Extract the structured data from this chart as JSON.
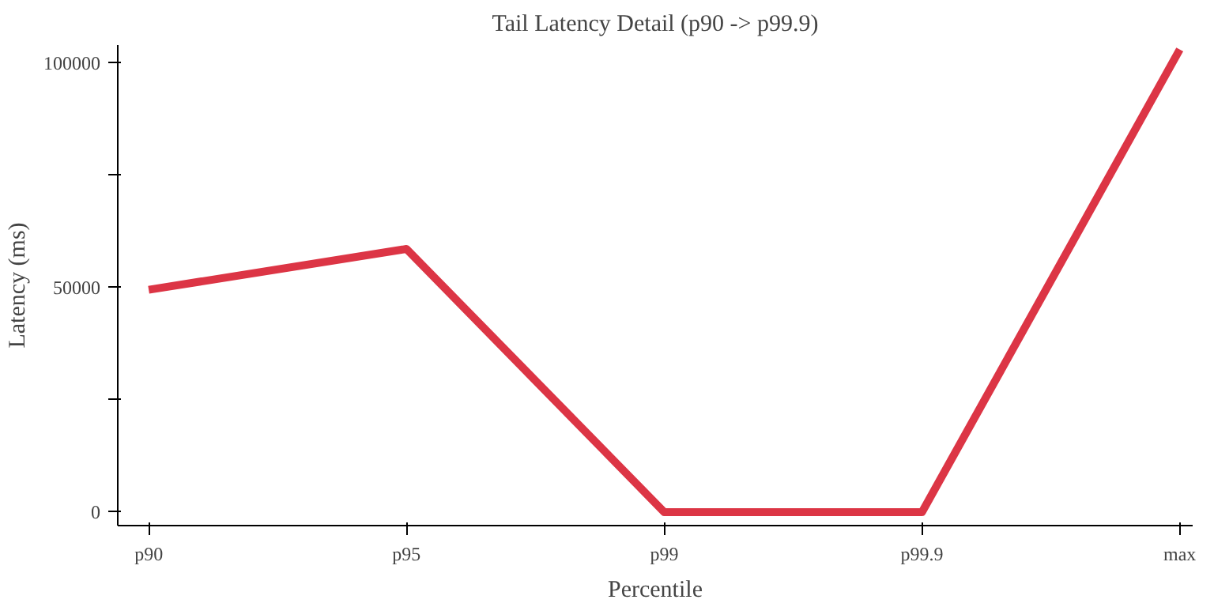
{
  "chart_data": {
    "type": "line",
    "title": "Tail Latency Detail (p90 -> p99.9)",
    "xlabel": "Percentile",
    "ylabel": "Latency (ms)",
    "categories": [
      "p90",
      "p95",
      "p99",
      "p99.9",
      "max"
    ],
    "series": [
      {
        "color": "#dc3545",
        "values": [
          49500,
          58600,
          0,
          0,
          103000
        ]
      }
    ],
    "ylim": [
      -3000,
      104000
    ],
    "yticks": [
      0,
      {
        "value": 25000,
        "label": null
      },
      50000,
      {
        "value": 75000,
        "label": null
      },
      100000
    ],
    "grid": false,
    "marker": "none",
    "line_style": "solid"
  }
}
